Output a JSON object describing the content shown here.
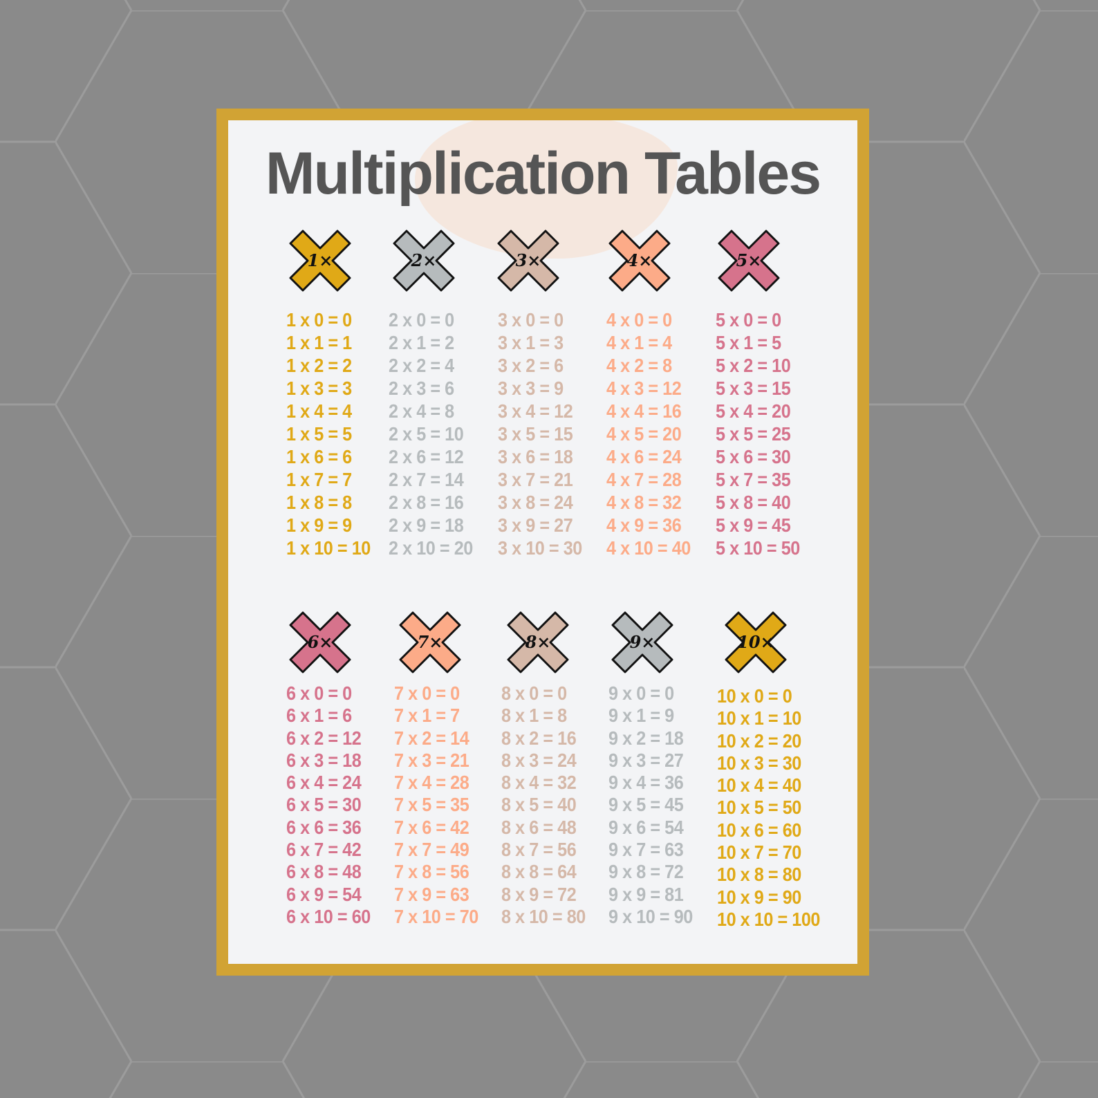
{
  "title": "Multiplication Tables",
  "colors": {
    "background": "#8a8a8a",
    "frame": "#d1a334",
    "sheet": "#f3f4f6"
  },
  "tables": [
    {
      "label": "1×",
      "color": "#e0a917",
      "rows": [
        "1 x 0 = 0",
        "1 x 1 = 1",
        "1 x 2 = 2",
        "1 x 3 = 3",
        "1 x 4 = 4",
        "1 x 5 = 5",
        "1 x 6 = 6",
        "1 x 7 = 7",
        "1 x 8 = 8",
        "1 x 9 = 9",
        "1 x 10 = 10"
      ]
    },
    {
      "label": "2×",
      "color": "#b6bbbd",
      "rows": [
        "2 x 0 = 0",
        "2 x 1 = 2",
        "2 x 2 = 4",
        "2 x 3 = 6",
        "2 x 4 = 8",
        "2 x 5 = 10",
        "2 x 6 = 12",
        "2 x 7 = 14",
        "2 x 8 = 16",
        "2 x 9 = 18",
        "2 x 10 = 20"
      ]
    },
    {
      "label": "3×",
      "color": "#d5b8a8",
      "rows": [
        "3 x 0 = 0",
        "3 x 1 = 3",
        "3 x 2 = 6",
        "3 x 3 = 9",
        "3 x 4 = 12",
        "3 x 5 = 15",
        "3 x 6 = 18",
        "3 x 7 = 21",
        "3 x 8 = 24",
        "3 x 9 = 27",
        "3 x 10 = 30"
      ]
    },
    {
      "label": "4×",
      "color": "#fcab88",
      "rows": [
        "4 x 0 = 0",
        "4 x 1 = 4",
        "4 x 2 = 8",
        "4 x 3 = 12",
        "4 x 4 = 16",
        "4 x 5 = 20",
        "4 x 6 = 24",
        "4 x 7 = 28",
        "4 x 8 = 32",
        "4 x 9 = 36",
        "4 x 10 = 40"
      ]
    },
    {
      "label": "5×",
      "color": "#d6738c",
      "rows": [
        "5 x 0 = 0",
        "5 x 1 = 5",
        "5 x 2 = 10",
        "5 x 3 = 15",
        "5 x 4 = 20",
        "5 x 5 = 25",
        "5 x 6 = 30",
        "5 x 7 = 35",
        "5 x 8 = 40",
        "5 x 9 = 45",
        "5 x 10 = 50"
      ]
    },
    {
      "label": "6×",
      "color": "#d6738c",
      "rows": [
        "6 x 0 = 0",
        "6 x 1 = 6",
        "6 x 2 = 12",
        "6 x 3 = 18",
        "6 x 4 = 24",
        "6 x 5 = 30",
        "6 x 6 = 36",
        "6 x 7 = 42",
        "6 x 8 = 48",
        "6 x 9 = 54",
        "6 x 10 = 60"
      ]
    },
    {
      "label": "7×",
      "color": "#fcab88",
      "rows": [
        "7 x 0 = 0",
        "7 x 1 = 7",
        "7 x 2 = 14",
        "7 x 3 = 21",
        "7 x 4 = 28",
        "7 x 5 = 35",
        "7 x 6 = 42",
        "7 x 7 = 49",
        "7 x 8 = 56",
        "7 x 9 = 63",
        "7 x 10 = 70"
      ]
    },
    {
      "label": "8×",
      "color": "#d5b8a8",
      "rows": [
        "8 x 0 = 0",
        "8 x 1 = 8",
        "8 x 2 = 16",
        "8 x 3 = 24",
        "8 x 4 = 32",
        "8 x 5 = 40",
        "8 x 6 = 48",
        "8 x 7 = 56",
        "8 x 8 = 64",
        "8 x 9 = 72",
        "8 x 10 = 80"
      ]
    },
    {
      "label": "9×",
      "color": "#b6bbbd",
      "rows": [
        "9 x 0 = 0",
        "9 x 1 = 9",
        "9 x 2 = 18",
        "9 x 3 = 27",
        "9 x 4 = 36",
        "9 x 5 = 45",
        "9 x 6 = 54",
        "9 x 7 = 63",
        "9 x 8 = 72",
        "9 x 9 = 81",
        "9 x 10 = 90"
      ]
    },
    {
      "label": "10×",
      "color": "#e0a917",
      "rows": [
        "10 x 0 = 0",
        "10 x 1 = 10",
        "10 x 2 = 20",
        "10 x 3 = 30",
        "10 x 4 = 40",
        "10 x 5 = 50",
        "10 x 6 = 60",
        "10 x 7 = 70",
        "10 x 8 = 80",
        "10 x 9 = 90",
        "10 x 10 = 100"
      ]
    }
  ]
}
